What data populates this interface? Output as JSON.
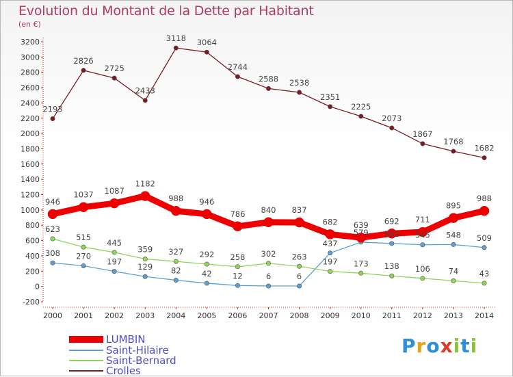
{
  "header": {
    "title": "Evolution du Montant de la Dette par Habitant",
    "subtitle": "(en €)"
  },
  "logo": {
    "letters": [
      "P",
      "r",
      "o",
      "x",
      "i",
      "t",
      "i"
    ],
    "colors": [
      "#2e8fd6",
      "#e8a21a",
      "#2e8fd6",
      "#dd3b2a",
      "#8ac43f",
      "#2e8fd6",
      "#8ac43f"
    ]
  },
  "chart_data": {
    "type": "line",
    "x": [
      "2000",
      "2001",
      "2002",
      "2003",
      "2004",
      "2005",
      "2006",
      "2007",
      "2008",
      "2009",
      "2010",
      "2011",
      "2012",
      "2013",
      "2014"
    ],
    "yticks": [
      "-200",
      "0",
      "200",
      "400",
      "600",
      "800",
      "1000",
      "1200",
      "1400",
      "1600",
      "1800",
      "2000",
      "2200",
      "2400",
      "2600",
      "2800",
      "3000",
      "3200"
    ],
    "ylim": [
      -200,
      3200
    ],
    "grid": false,
    "legend_position": "bottom-left",
    "series": [
      {
        "name": "LUMBIN",
        "color": "#ee0000",
        "label_color": "#444444",
        "values": [
          946,
          1037,
          1087,
          1182,
          988,
          946,
          786,
          840,
          837,
          682,
          639,
          692,
          711,
          895,
          988
        ],
        "labels": [
          "946",
          "1037",
          "1087",
          "1182",
          "988",
          "946",
          "786",
          "840",
          "837",
          "682",
          "639",
          "692",
          "711",
          "895",
          "988"
        ]
      },
      {
        "name": "Saint-Hilaire",
        "color": "#5d9fd4",
        "label_color": "#444444",
        "values": [
          308,
          270,
          197,
          129,
          82,
          42,
          12,
          6,
          6,
          437,
          579,
          562,
          545,
          548,
          509
        ],
        "labels": [
          "308",
          "270",
          "197",
          "129",
          "82",
          "42",
          "12",
          "6",
          "6",
          "437",
          "579",
          "562",
          "545",
          "548",
          "509"
        ]
      },
      {
        "name": "Saint-Bernard",
        "color": "#8ed655",
        "label_color": "#444444",
        "values": [
          623,
          515,
          445,
          359,
          327,
          292,
          258,
          302,
          263,
          197,
          173,
          138,
          106,
          74,
          43
        ],
        "labels": [
          "623",
          "515",
          "445",
          "359",
          "327",
          "292",
          "258",
          "302",
          "263",
          "197",
          "173",
          "138",
          "106",
          "74",
          "43"
        ]
      },
      {
        "name": "Crolles",
        "color": "#7a1a22",
        "label_color": "#444444",
        "values": [
          2193,
          2826,
          2725,
          2433,
          3118,
          3064,
          2744,
          2588,
          2538,
          2351,
          2225,
          2073,
          1867,
          1768,
          1682
        ],
        "labels": [
          "2193",
          "2826",
          "2725",
          "2433",
          "3118",
          "3064",
          "2744",
          "2588",
          "2538",
          "2351",
          "2225",
          "2073",
          "1867",
          "1768",
          "1682"
        ]
      }
    ]
  }
}
